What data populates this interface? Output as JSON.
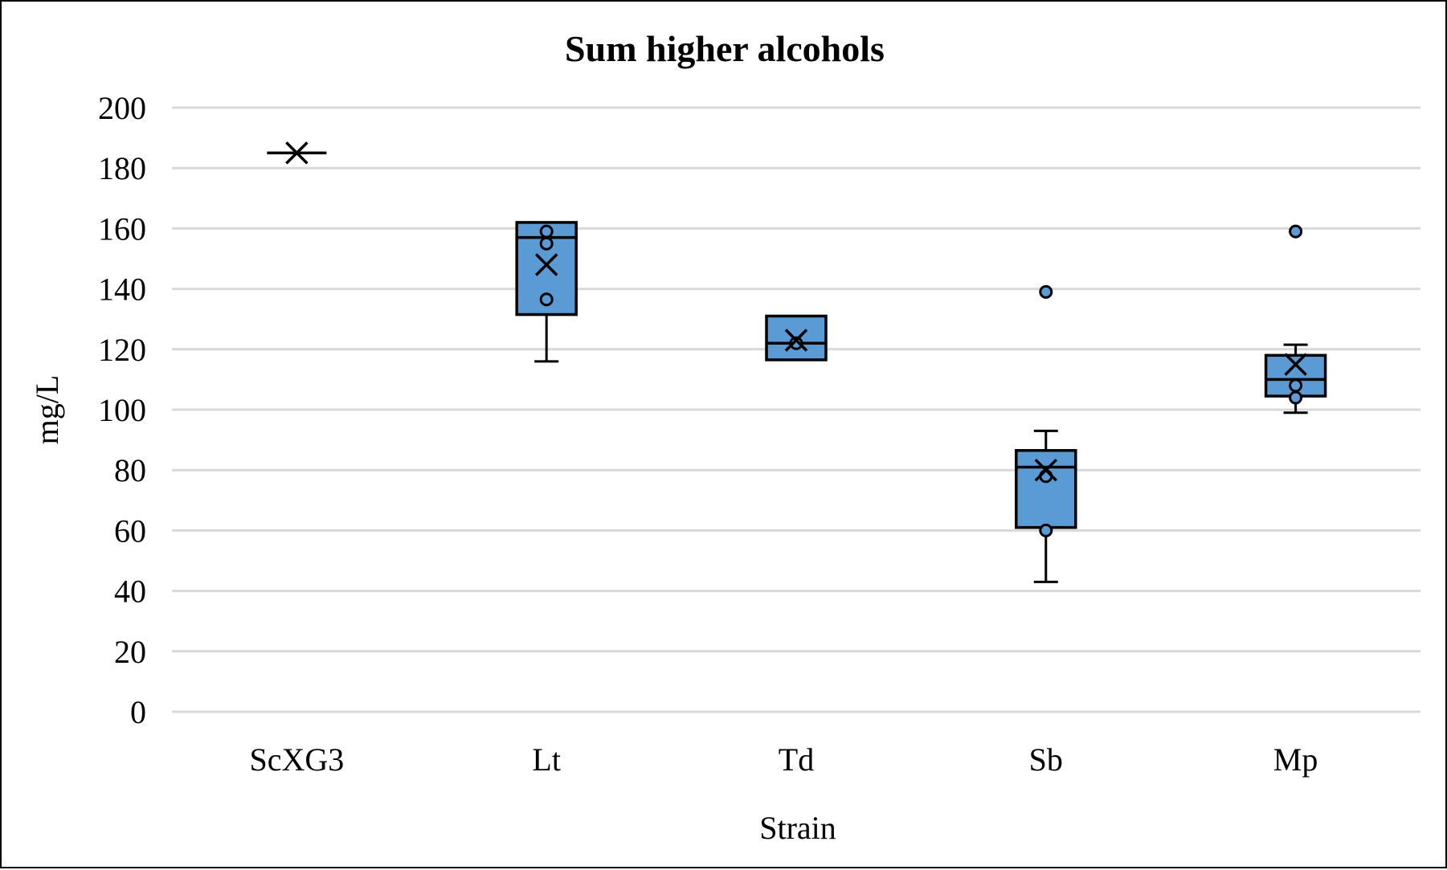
{
  "chart_data": {
    "type": "box",
    "title": "Sum higher alcohols",
    "xlabel": "Strain",
    "ylabel": "mg/L",
    "ylim": [
      0,
      200
    ],
    "ytick_step": 20,
    "grid": true,
    "legend": "none",
    "colors": {
      "box_fill": "#5B9BD5",
      "box_stroke": "#000000",
      "grid": "#d9d9d9",
      "background": "#ffffff"
    },
    "categories": [
      "ScXG3",
      "Lt",
      "Td",
      "Sb",
      "Mp"
    ],
    "boxes": [
      {
        "category": "ScXG3",
        "min": 185,
        "q1": 185,
        "median": 185,
        "q3": 185,
        "max": 185,
        "mean": 185,
        "points": []
      },
      {
        "category": "Lt",
        "min": 116,
        "q1": 131.5,
        "median": 157,
        "q3": 162,
        "max": 162,
        "mean": 148,
        "points": [
          136.5,
          155,
          159
        ]
      },
      {
        "category": "Td",
        "min": 116.5,
        "q1": 116.5,
        "median": 122,
        "q3": 131,
        "max": 131,
        "mean": 123,
        "points": [
          122
        ]
      },
      {
        "category": "Sb",
        "min": 43,
        "q1": 61,
        "median": 81,
        "q3": 86.5,
        "max": 93,
        "mean": 80,
        "points": [
          60,
          78,
          139
        ]
      },
      {
        "category": "Mp",
        "min": 99,
        "q1": 104.5,
        "median": 110,
        "q3": 118,
        "max": 121.5,
        "mean": 115,
        "points": [
          104,
          108,
          159
        ]
      }
    ]
  }
}
